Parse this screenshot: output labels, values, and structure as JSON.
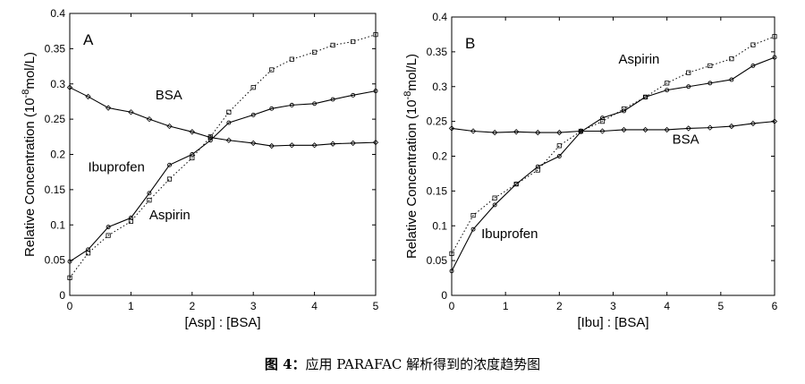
{
  "figure": {
    "caption_prefix": "图 4：",
    "caption_text": "应用 PARAFAC 解析得到的浓度趋势图"
  },
  "chart_data": [
    {
      "type": "line",
      "panel_label": "A",
      "xlabel": "[Asp] : [BSA]",
      "ylabel_main": "Relative Concentration (10",
      "ylabel_sup": "-8",
      "ylabel_tail": "mol/L)",
      "xlim": [
        0,
        5
      ],
      "ylim": [
        0,
        0.4
      ],
      "xticks": [
        0,
        1,
        2,
        3,
        4,
        5
      ],
      "yticks": [
        0,
        0.05,
        0.1,
        0.15,
        0.2,
        0.25,
        0.3,
        0.35,
        0.4
      ],
      "grid": false,
      "series": [
        {
          "name": "BSA",
          "label_at": [
            1.4,
            0.278
          ],
          "marker": "diamond",
          "line": "solid",
          "x": [
            0,
            0.3,
            0.63,
            1.0,
            1.3,
            1.63,
            2.0,
            2.3,
            2.6,
            3.0,
            3.3,
            3.63,
            4.0,
            4.3,
            4.63,
            5.0
          ],
          "values": [
            0.295,
            0.282,
            0.266,
            0.26,
            0.25,
            0.24,
            0.232,
            0.224,
            0.22,
            0.216,
            0.212,
            0.213,
            0.213,
            0.215,
            0.216,
            0.217
          ]
        },
        {
          "name": "Ibuprofen",
          "label_at": [
            0.3,
            0.176
          ],
          "marker": "circle",
          "line": "solid",
          "x": [
            0,
            0.3,
            0.63,
            1.0,
            1.3,
            1.63,
            2.0,
            2.3,
            2.6,
            3.0,
            3.3,
            3.63,
            4.0,
            4.3,
            4.63,
            5.0
          ],
          "values": [
            0.048,
            0.065,
            0.097,
            0.11,
            0.145,
            0.185,
            0.2,
            0.22,
            0.245,
            0.256,
            0.265,
            0.27,
            0.272,
            0.278,
            0.284,
            0.29
          ]
        },
        {
          "name": "Aspirin",
          "label_at": [
            1.3,
            0.108
          ],
          "marker": "square",
          "line": "dotted",
          "x": [
            0,
            0.3,
            0.63,
            1.0,
            1.3,
            1.63,
            2.0,
            2.3,
            2.6,
            3.0,
            3.3,
            3.63,
            4.0,
            4.3,
            4.63,
            5.0
          ],
          "values": [
            0.025,
            0.06,
            0.085,
            0.105,
            0.135,
            0.165,
            0.195,
            0.225,
            0.26,
            0.295,
            0.32,
            0.335,
            0.345,
            0.355,
            0.36,
            0.37
          ]
        }
      ]
    },
    {
      "type": "line",
      "panel_label": "B",
      "xlabel": "[Ibu] : [BSA]",
      "ylabel_main": "Relative Concentration (10",
      "ylabel_sup": "-8",
      "ylabel_tail": "mol/L)",
      "xlim": [
        0,
        6
      ],
      "ylim": [
        0,
        0.4
      ],
      "xticks": [
        0,
        1,
        2,
        3,
        4,
        5,
        6
      ],
      "yticks": [
        0,
        0.05,
        0.1,
        0.15,
        0.2,
        0.25,
        0.3,
        0.35,
        0.4
      ],
      "grid": false,
      "series": [
        {
          "name": "Aspirin",
          "label_at": [
            3.1,
            0.333
          ],
          "marker": "square",
          "line": "dotted",
          "x": [
            0,
            0.4,
            0.8,
            1.2,
            1.6,
            2.0,
            2.4,
            2.8,
            3.2,
            3.6,
            4.0,
            4.4,
            4.8,
            5.2,
            5.6,
            6.0
          ],
          "values": [
            0.06,
            0.115,
            0.14,
            0.16,
            0.18,
            0.215,
            0.236,
            0.25,
            0.268,
            0.285,
            0.305,
            0.32,
            0.33,
            0.34,
            0.36,
            0.372
          ]
        },
        {
          "name": "Ibuprofen",
          "label_at": [
            0.55,
            0.082
          ],
          "marker": "circle",
          "line": "solid",
          "x": [
            0,
            0.4,
            0.8,
            1.2,
            1.6,
            2.0,
            2.4,
            2.8,
            3.2,
            3.6,
            4.0,
            4.4,
            4.8,
            5.2,
            5.6,
            6.0
          ],
          "values": [
            0.035,
            0.095,
            0.13,
            0.16,
            0.185,
            0.2,
            0.235,
            0.255,
            0.265,
            0.285,
            0.295,
            0.3,
            0.305,
            0.31,
            0.33,
            0.342
          ]
        },
        {
          "name": "BSA",
          "label_at": [
            4.1,
            0.218
          ],
          "marker": "diamond",
          "line": "solid",
          "x": [
            0,
            0.4,
            0.8,
            1.2,
            1.6,
            2.0,
            2.4,
            2.8,
            3.2,
            3.6,
            4.0,
            4.4,
            4.8,
            5.2,
            5.6,
            6.0
          ],
          "values": [
            0.24,
            0.236,
            0.234,
            0.235,
            0.234,
            0.234,
            0.236,
            0.236,
            0.238,
            0.238,
            0.238,
            0.24,
            0.241,
            0.243,
            0.247,
            0.25
          ]
        }
      ]
    }
  ]
}
